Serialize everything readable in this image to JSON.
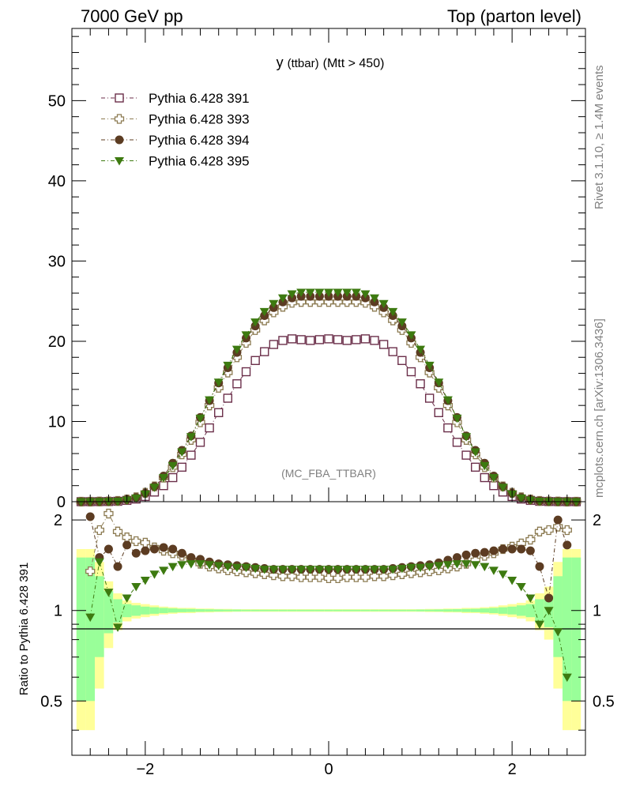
{
  "header": {
    "left": "7000 GeV pp",
    "right": "Top (parton level)"
  },
  "side_labels": {
    "rivet": "Rivet 3.1.10, ≥ 1.4M events",
    "mcplots": "mcplots.cern.ch [arXiv:1306.3436]"
  },
  "watermark": "(MC_FBA_TTBAR)",
  "plot_title": {
    "main": "y",
    "sub": "(ttbar)",
    "rest": "(Mtt > 450)"
  },
  "ratio_ylabel": "Ratio to Pythia 6.428 391",
  "colors": {
    "s391": "#6b2f4a",
    "s393": "#8c7b52",
    "s394": "#5c3c22",
    "s395": "#3d7a10",
    "band_yellow": "#ffff99",
    "band_green": "#99ff99"
  },
  "chart_data": {
    "type": "scatter",
    "x": [
      -2.7,
      -2.6,
      -2.5,
      -2.4,
      -2.3,
      -2.2,
      -2.1,
      -2.0,
      -1.9,
      -1.8,
      -1.7,
      -1.6,
      -1.5,
      -1.4,
      -1.3,
      -1.2,
      -1.1,
      -1.0,
      -0.9,
      -0.8,
      -0.7,
      -0.6,
      -0.5,
      -0.4,
      -0.3,
      -0.2,
      -0.1,
      0.0,
      0.1,
      0.2,
      0.3,
      0.4,
      0.5,
      0.6,
      0.7,
      0.8,
      0.9,
      1.0,
      1.1,
      1.2,
      1.3,
      1.4,
      1.5,
      1.6,
      1.7,
      1.8,
      1.9,
      2.0,
      2.1,
      2.2,
      2.3,
      2.4,
      2.5,
      2.6,
      2.7
    ],
    "main_panel": {
      "ylim": [
        0,
        59
      ],
      "yticks": [
        0,
        10,
        20,
        30,
        40,
        50
      ],
      "series": [
        {
          "name": "Pythia 6.428 391",
          "marker": "open-square",
          "values": [
            0.0,
            0.0,
            0.01,
            0.02,
            0.05,
            0.16,
            0.33,
            0.65,
            1.2,
            2.0,
            3.0,
            4.3,
            5.8,
            7.4,
            9.2,
            11.1,
            12.9,
            14.7,
            16.2,
            17.6,
            18.7,
            19.6,
            20.1,
            20.3,
            20.2,
            20.1,
            20.2,
            20.3,
            20.2,
            20.1,
            20.2,
            20.3,
            20.1,
            19.6,
            18.7,
            17.6,
            16.2,
            14.7,
            12.9,
            11.1,
            9.2,
            7.4,
            5.8,
            4.3,
            3.0,
            2.0,
            1.2,
            0.65,
            0.33,
            0.16,
            0.05,
            0.02,
            0.01,
            0.0,
            0.0
          ]
        },
        {
          "name": "Pythia 6.428 393",
          "marker": "open-cross",
          "values": [
            0.0,
            0.0,
            0.02,
            0.04,
            0.09,
            0.28,
            0.55,
            1.1,
            1.9,
            3.0,
            4.3,
            5.9,
            7.7,
            9.9,
            12.0,
            14.2,
            16.1,
            18.0,
            19.8,
            21.4,
            22.6,
            23.6,
            24.3,
            24.8,
            24.9,
            24.9,
            24.9,
            24.9,
            24.9,
            24.9,
            24.9,
            24.8,
            24.3,
            23.6,
            22.6,
            21.4,
            19.8,
            18.0,
            16.1,
            14.2,
            12.0,
            9.9,
            7.7,
            5.9,
            4.3,
            3.0,
            1.9,
            1.1,
            0.55,
            0.28,
            0.09,
            0.04,
            0.02,
            0.0,
            0.0
          ]
        },
        {
          "name": "Pythia 6.428 394",
          "marker": "filled-circle",
          "values": [
            0.0,
            0.0,
            0.02,
            0.03,
            0.08,
            0.26,
            0.52,
            1.05,
            1.9,
            3.2,
            4.8,
            6.4,
            8.2,
            10.5,
            12.6,
            14.8,
            16.7,
            18.6,
            20.4,
            21.9,
            23.2,
            24.2,
            24.9,
            25.4,
            25.6,
            25.6,
            25.6,
            25.6,
            25.6,
            25.6,
            25.6,
            25.4,
            24.9,
            24.2,
            23.2,
            21.9,
            20.4,
            18.6,
            16.7,
            14.8,
            12.6,
            10.5,
            8.2,
            6.4,
            4.8,
            3.2,
            1.9,
            1.05,
            0.52,
            0.26,
            0.08,
            0.03,
            0.02,
            0.0,
            0.0
          ]
        },
        {
          "name": "Pythia 6.428 395",
          "marker": "filled-triangle-down",
          "values": [
            0.0,
            0.0,
            0.01,
            0.03,
            0.05,
            0.2,
            0.45,
            0.95,
            1.8,
            3.0,
            4.5,
            6.2,
            8.1,
            10.4,
            12.7,
            14.9,
            17.0,
            19.0,
            20.8,
            22.4,
            23.7,
            24.7,
            25.4,
            25.9,
            26.1,
            26.1,
            26.1,
            26.1,
            26.1,
            26.1,
            26.1,
            25.9,
            25.4,
            24.7,
            23.7,
            22.4,
            20.8,
            19.0,
            17.0,
            14.9,
            12.7,
            10.4,
            8.1,
            6.2,
            4.5,
            3.0,
            1.8,
            0.95,
            0.45,
            0.2,
            0.05,
            0.03,
            0.01,
            0.0,
            0.0
          ]
        }
      ]
    },
    "ratio_panel": {
      "ylim": [
        0.33,
        2.3
      ],
      "yticks": [
        0.5,
        1,
        2
      ],
      "ytick_labels": [
        "0.5",
        "1",
        "2"
      ],
      "band_yellow_halfwidth": [
        0.6,
        0.6,
        0.45,
        0.25,
        0.14,
        0.08,
        0.06,
        0.05,
        0.04,
        0.03,
        0.025,
        0.02,
        0.02,
        0.015,
        0.015,
        0.012,
        0.012,
        0.01,
        0.01,
        0.01,
        0.01,
        0.01,
        0.01,
        0.01,
        0.01,
        0.01,
        0.01,
        0.01,
        0.01,
        0.01,
        0.01,
        0.01,
        0.01,
        0.01,
        0.01,
        0.01,
        0.01,
        0.01,
        0.012,
        0.012,
        0.015,
        0.015,
        0.02,
        0.02,
        0.025,
        0.03,
        0.04,
        0.05,
        0.06,
        0.08,
        0.14,
        0.2,
        0.45,
        0.6,
        0.6
      ],
      "band_green_halfwidth": [
        0.5,
        0.5,
        0.3,
        0.16,
        0.09,
        0.05,
        0.04,
        0.03,
        0.025,
        0.02,
        0.016,
        0.013,
        0.012,
        0.01,
        0.009,
        0.008,
        0.007,
        0.007,
        0.006,
        0.006,
        0.006,
        0.006,
        0.006,
        0.006,
        0.006,
        0.006,
        0.006,
        0.006,
        0.006,
        0.006,
        0.006,
        0.006,
        0.006,
        0.006,
        0.006,
        0.006,
        0.006,
        0.007,
        0.007,
        0.008,
        0.009,
        0.01,
        0.012,
        0.013,
        0.016,
        0.02,
        0.025,
        0.03,
        0.04,
        0.05,
        0.09,
        0.12,
        0.3,
        0.5,
        0.5
      ],
      "series": [
        {
          "name": "Pythia 6.428 393",
          "values": [
            null,
            1.35,
            1.85,
            2.1,
            1.83,
            1.75,
            1.7,
            1.68,
            1.62,
            1.58,
            1.55,
            1.52,
            1.47,
            1.43,
            1.4,
            1.38,
            1.36,
            1.35,
            1.34,
            1.33,
            1.32,
            1.31,
            1.3,
            1.3,
            1.29,
            1.29,
            1.29,
            1.28,
            1.28,
            1.29,
            1.29,
            1.29,
            1.3,
            1.3,
            1.31,
            1.32,
            1.33,
            1.34,
            1.35,
            1.36,
            1.38,
            1.4,
            1.43,
            1.47,
            1.52,
            1.55,
            1.6,
            1.63,
            1.67,
            1.72,
            1.83,
            1.85,
            1.9,
            1.85,
            null
          ]
        },
        {
          "name": "Pythia 6.428 394",
          "values": [
            null,
            2.05,
            1.5,
            1.6,
            1.4,
            1.65,
            1.55,
            1.58,
            1.6,
            1.62,
            1.6,
            1.55,
            1.5,
            1.48,
            1.45,
            1.43,
            1.42,
            1.41,
            1.4,
            1.39,
            1.38,
            1.37,
            1.37,
            1.37,
            1.37,
            1.37,
            1.37,
            1.37,
            1.37,
            1.37,
            1.37,
            1.37,
            1.37,
            1.37,
            1.38,
            1.39,
            1.4,
            1.41,
            1.42,
            1.44,
            1.47,
            1.5,
            1.53,
            1.55,
            1.56,
            1.58,
            1.6,
            1.6,
            1.6,
            1.58,
            1.4,
            1.1,
            2.0,
            1.65,
            null
          ]
        },
        {
          "name": "Pythia 6.428 395",
          "values": [
            null,
            0.95,
            1.45,
            1.15,
            0.88,
            1.1,
            1.2,
            1.26,
            1.32,
            1.36,
            1.4,
            1.42,
            1.43,
            1.43,
            1.42,
            1.41,
            1.4,
            1.39,
            1.39,
            1.38,
            1.37,
            1.37,
            1.37,
            1.37,
            1.37,
            1.37,
            1.37,
            1.37,
            1.37,
            1.37,
            1.37,
            1.37,
            1.37,
            1.37,
            1.37,
            1.38,
            1.39,
            1.39,
            1.4,
            1.41,
            1.42,
            1.43,
            1.43,
            1.42,
            1.4,
            1.36,
            1.32,
            1.26,
            1.2,
            1.1,
            0.9,
            1.0,
            0.85,
            0.6,
            null
          ]
        }
      ]
    },
    "xaxis": {
      "xlim": [
        -2.8,
        2.8
      ],
      "ticks": [
        -2,
        0,
        2
      ],
      "tick_labels": [
        "−2",
        "0",
        "2"
      ]
    },
    "legend": {
      "placement": "top-left"
    },
    "grid": false
  }
}
